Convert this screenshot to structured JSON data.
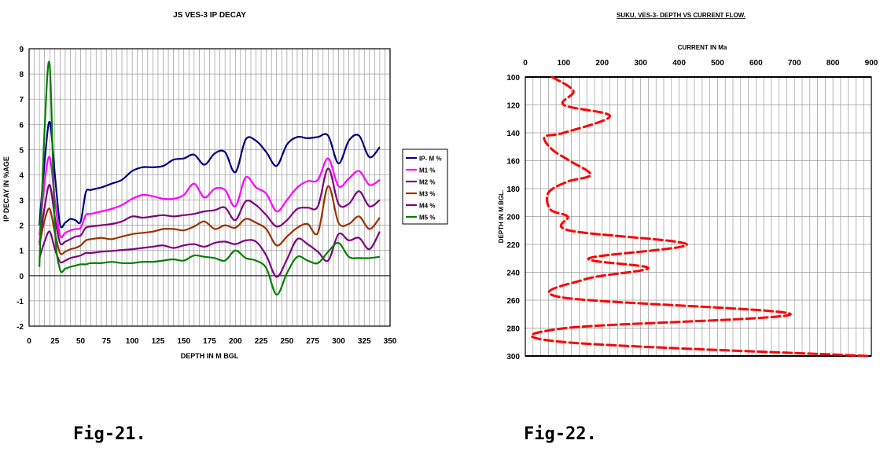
{
  "captions": {
    "fig21": "Fig-21.",
    "fig22": "Fig-22."
  },
  "chart_data": [
    {
      "type": "line",
      "title": "JS VES-3 IP DECAY",
      "xlabel": "DEPTH IN M BGL",
      "ylabel": "IP DECAY IN %AGE",
      "xlim": [
        0,
        350
      ],
      "ylim": [
        -2,
        9
      ],
      "x_ticks": [
        0,
        25,
        50,
        75,
        100,
        125,
        150,
        175,
        200,
        225,
        250,
        275,
        300,
        325,
        350
      ],
      "y_ticks": [
        -2,
        -1,
        0,
        1,
        2,
        3,
        4,
        5,
        6,
        7,
        8,
        9
      ],
      "grid": true,
      "legend": "right",
      "x": [
        10,
        15,
        20,
        25,
        30,
        35,
        40,
        45,
        50,
        55,
        60,
        70,
        80,
        90,
        100,
        110,
        120,
        130,
        140,
        150,
        160,
        170,
        180,
        190,
        200,
        210,
        220,
        230,
        240,
        250,
        260,
        270,
        280,
        290,
        300,
        310,
        320,
        330,
        340
      ],
      "series": [
        {
          "name": "IP- M %",
          "color": "#000080",
          "values": [
            2.0,
            4.5,
            6.1,
            4.0,
            2.05,
            2.1,
            2.25,
            2.2,
            2.15,
            3.3,
            3.4,
            3.5,
            3.65,
            3.8,
            4.15,
            4.3,
            4.3,
            4.35,
            4.6,
            4.65,
            4.8,
            4.4,
            4.85,
            4.9,
            4.1,
            5.4,
            5.35,
            4.9,
            4.35,
            5.2,
            5.5,
            5.45,
            5.5,
            5.55,
            4.45,
            5.35,
            5.55,
            4.7,
            5.1
          ]
        },
        {
          "name": "M1 %",
          "color": "#ff00ff",
          "values": [
            1.6,
            3.7,
            4.7,
            3.0,
            1.6,
            1.7,
            1.8,
            1.85,
            1.9,
            2.4,
            2.45,
            2.55,
            2.65,
            2.8,
            3.05,
            3.2,
            3.15,
            3.05,
            3.05,
            3.2,
            3.65,
            3.1,
            3.45,
            3.4,
            2.75,
            3.9,
            3.5,
            3.25,
            2.55,
            3.0,
            3.5,
            3.75,
            3.8,
            4.65,
            3.55,
            3.85,
            4.15,
            3.6,
            3.8
          ]
        },
        {
          "name": "M2 %",
          "color": "#800080",
          "values": [
            1.3,
            2.7,
            3.6,
            2.3,
            1.3,
            1.35,
            1.45,
            1.55,
            1.6,
            1.9,
            1.95,
            2.0,
            2.05,
            2.15,
            2.35,
            2.3,
            2.35,
            2.4,
            2.35,
            2.4,
            2.45,
            2.55,
            2.6,
            2.7,
            2.2,
            2.95,
            2.8,
            2.4,
            1.95,
            2.2,
            2.65,
            2.7,
            2.75,
            4.25,
            2.85,
            2.85,
            3.35,
            2.75,
            3.0
          ]
        },
        {
          "name": "M3 %",
          "color": "#993300",
          "values": [
            1.2,
            2.2,
            2.65,
            1.7,
            0.9,
            0.95,
            1.05,
            1.1,
            1.2,
            1.4,
            1.45,
            1.5,
            1.45,
            1.55,
            1.65,
            1.7,
            1.75,
            1.85,
            1.85,
            1.8,
            1.95,
            2.15,
            1.85,
            2.0,
            1.9,
            2.25,
            2.1,
            1.85,
            1.2,
            1.55,
            1.9,
            2.05,
            1.7,
            3.55,
            2.1,
            2.05,
            2.35,
            1.85,
            2.3
          ]
        },
        {
          "name": "M4 %",
          "color": "#800080",
          "values": [
            0.7,
            1.35,
            1.75,
            1.05,
            0.55,
            0.6,
            0.7,
            0.75,
            0.8,
            0.9,
            0.9,
            0.95,
            0.98,
            1.02,
            1.05,
            1.1,
            1.15,
            1.2,
            1.1,
            1.2,
            1.25,
            1.15,
            1.3,
            1.35,
            1.25,
            1.4,
            1.35,
            0.8,
            -0.05,
            0.65,
            1.45,
            1.25,
            0.95,
            0.6,
            1.65,
            1.4,
            1.5,
            1.05,
            1.75
          ]
        },
        {
          "name": "M5 %",
          "color": "#008000",
          "values": [
            0.35,
            5.8,
            8.35,
            1.9,
            0.25,
            0.28,
            0.35,
            0.4,
            0.45,
            0.45,
            0.5,
            0.5,
            0.55,
            0.5,
            0.5,
            0.55,
            0.55,
            0.6,
            0.65,
            0.6,
            0.8,
            0.75,
            0.7,
            0.6,
            1.0,
            0.7,
            0.6,
            0.3,
            -0.75,
            0.1,
            0.75,
            0.6,
            0.5,
            0.95,
            1.3,
            0.75,
            0.7,
            0.7,
            0.75
          ]
        }
      ]
    },
    {
      "type": "line",
      "title": "SUKU, VES-3-  DEPTH VS CURRENT FLOW.",
      "xlabel": "CURRENT IN Ma",
      "ylabel": "DEPTH IN M BGL.",
      "xlim": [
        0,
        900
      ],
      "ylim": [
        100,
        300
      ],
      "y_inverted": true,
      "x_axis_position": "top",
      "x_ticks": [
        0,
        100,
        200,
        300,
        400,
        500,
        600,
        700,
        800,
        900
      ],
      "y_ticks": [
        100,
        120,
        140,
        160,
        180,
        200,
        220,
        240,
        260,
        280,
        300
      ],
      "grid": true,
      "series": [
        {
          "color": "#ff0000",
          "style": "dashed",
          "points": [
            [
              70,
              100
            ],
            [
              125,
              110
            ],
            [
              100,
              120
            ],
            [
              220,
              128
            ],
            [
              100,
              140
            ],
            [
              50,
              143
            ],
            [
              70,
              152
            ],
            [
              115,
              160
            ],
            [
              170,
              170
            ],
            [
              110,
              175
            ],
            [
              60,
              183
            ],
            [
              65,
              195
            ],
            [
              110,
              200
            ],
            [
              115,
              210
            ],
            [
              420,
              220
            ],
            [
              165,
              230
            ],
            [
              320,
              237
            ],
            [
              155,
              245
            ],
            [
              95,
              258
            ],
            [
              690,
              270
            ],
            [
              105,
              280
            ],
            [
              100,
              290
            ],
            [
              890,
              300
            ]
          ]
        }
      ]
    }
  ]
}
